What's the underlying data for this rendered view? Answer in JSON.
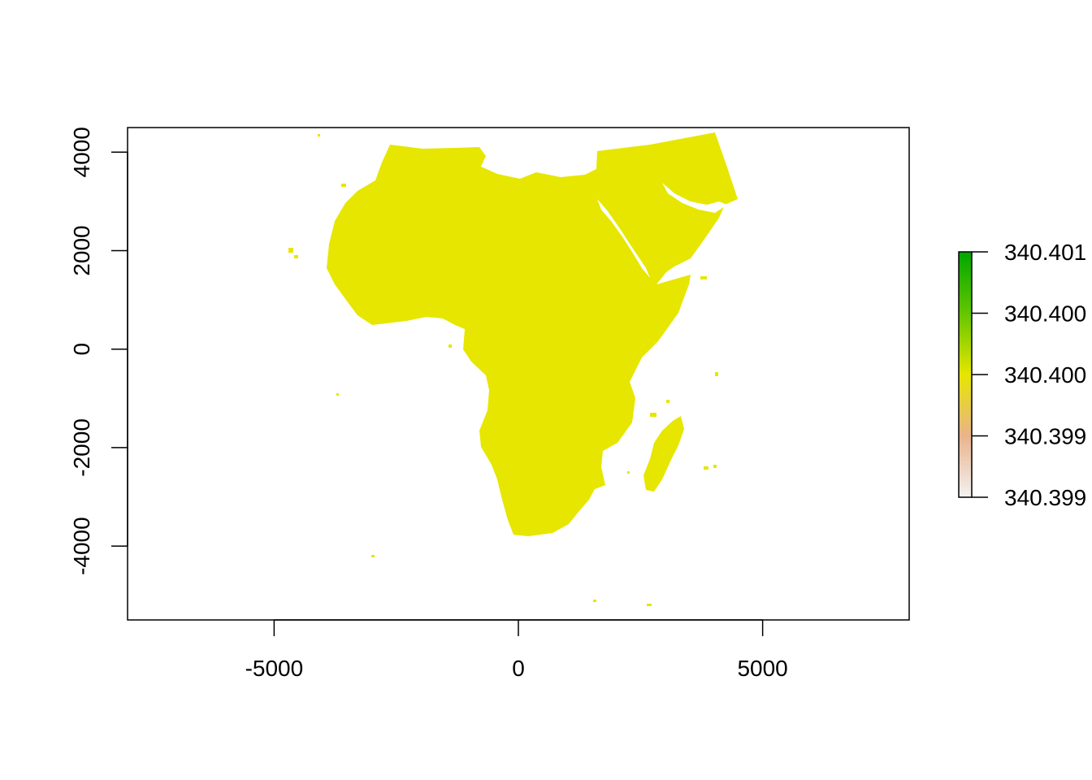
{
  "map": {
    "x_axis": {
      "range": [
        -8000,
        8000
      ],
      "ticks": [
        -5000,
        0,
        5000
      ],
      "tick_labels": [
        "-5000",
        "0",
        "5000"
      ]
    },
    "y_axis": {
      "range": [
        -5500,
        4500
      ],
      "ticks": [
        -4000,
        -2000,
        0,
        2000,
        4000
      ],
      "tick_labels": [
        "-4000",
        "-2000",
        "0",
        "2000",
        "4000"
      ]
    },
    "land_color": "#E6E600",
    "land_value": "340.4",
    "regions": [
      "Africa",
      "Arabian Peninsula",
      "Madagascar"
    ]
  },
  "legend": {
    "placement": "right",
    "value_range": [
      340.399,
      340.401
    ],
    "gradient_colors": [
      "#F2F2F2",
      "#EAB38B",
      "#E6E600",
      "#63C600",
      "#00A600"
    ],
    "tick_labels": [
      "340.3990",
      "340.3995",
      "340.4000",
      "340.4005",
      "340.4010"
    ],
    "tick_labels_shown": [
      "340.399",
      "340.399",
      "340.400",
      "340.400",
      "340.401"
    ]
  }
}
